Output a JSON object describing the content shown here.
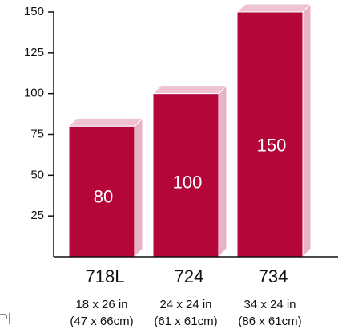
{
  "chart_data": {
    "type": "bar",
    "categories": [
      "718L",
      "724",
      "734"
    ],
    "values": [
      80,
      100,
      150
    ],
    "data_labels": [
      "80",
      "100",
      "150"
    ],
    "sublabels": [
      [
        "18 x 26 in",
        "(47 x 66cm)"
      ],
      [
        "24 x 24 in",
        "(61 x 61cm)"
      ],
      [
        "34 x 24 in",
        "(86 x 61cm)"
      ]
    ],
    "y_ticks": [
      25,
      50,
      75,
      100,
      125,
      150
    ],
    "ylim": [
      0,
      150
    ],
    "grid": false,
    "style": "3d",
    "colors": {
      "front": "#b5063a",
      "side": "#e8b3c6",
      "top": "#efc3d2",
      "edge": "#ffffff",
      "axis": "#111111",
      "label": "#ffffff"
    }
  }
}
